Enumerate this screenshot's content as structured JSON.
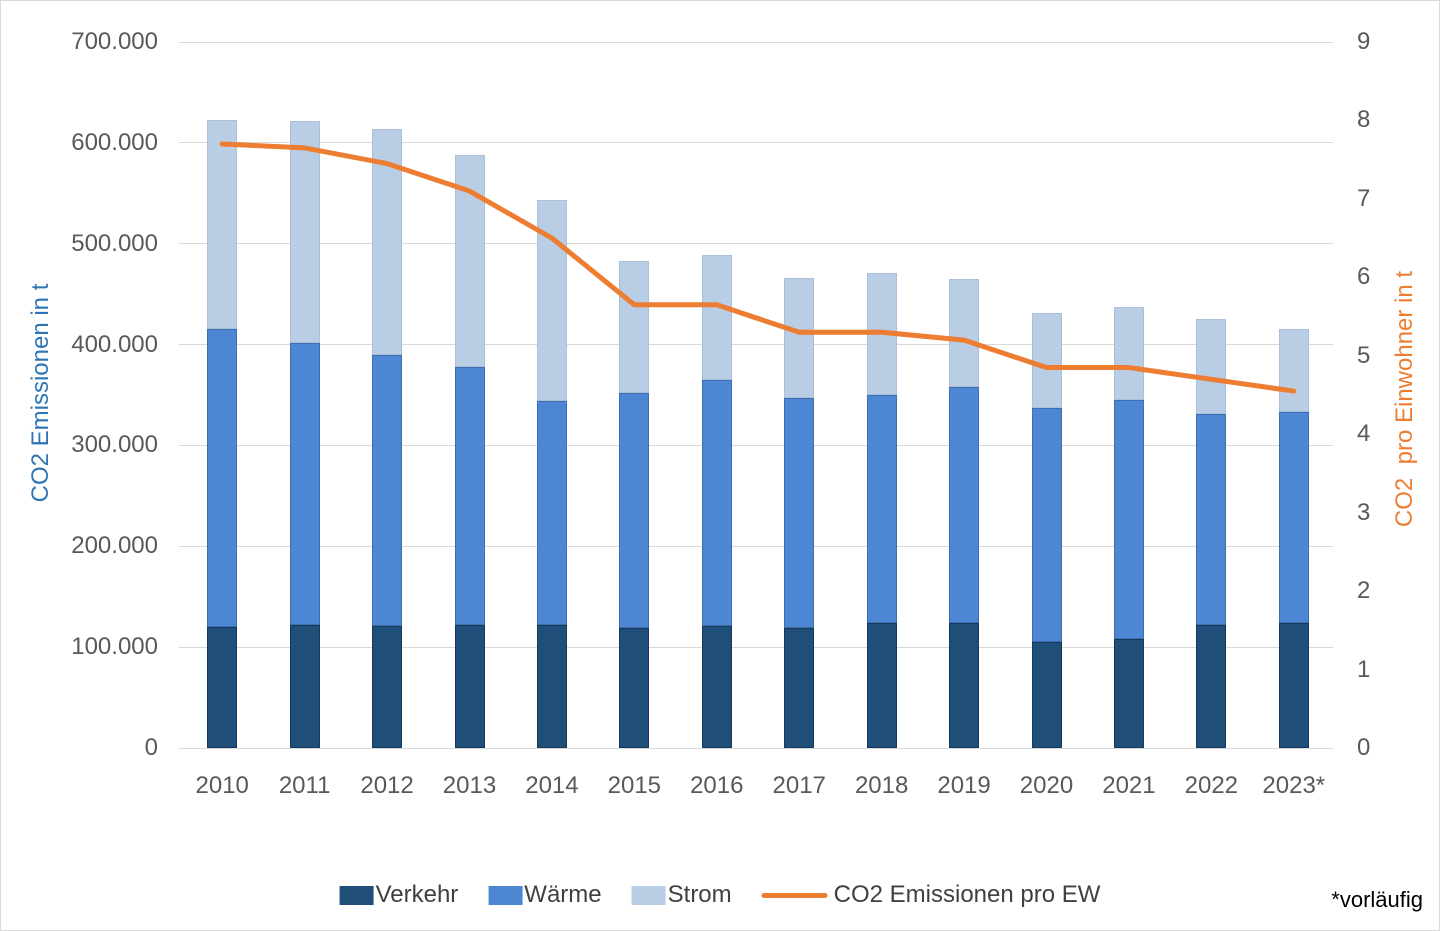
{
  "chart_data": {
    "type": "bar",
    "subtype": "stacked-bars-with-line",
    "categories": [
      "2010",
      "2011",
      "2012",
      "2013",
      "2014",
      "2015",
      "2016",
      "2017",
      "2018",
      "2019",
      "2020",
      "2021",
      "2022",
      "2023*"
    ],
    "series": [
      {
        "name": "Verkehr",
        "type": "bar",
        "axis": "left",
        "color": "#1F4E79",
        "values": [
          120000,
          122000,
          121000,
          122000,
          122000,
          119000,
          121000,
          119000,
          124000,
          124000,
          105000,
          108000,
          122000,
          124000
        ]
      },
      {
        "name": "Wärme",
        "type": "bar",
        "axis": "left",
        "color": "#4D86D2",
        "values": [
          295000,
          280000,
          269000,
          256000,
          222000,
          233000,
          244000,
          228000,
          226000,
          234000,
          232000,
          237000,
          209000,
          209000
        ]
      },
      {
        "name": "Strom",
        "type": "bar",
        "axis": "left",
        "color": "#B9CDE5",
        "values": [
          208000,
          220000,
          224000,
          210000,
          199000,
          131000,
          124000,
          119000,
          121000,
          107000,
          94000,
          92000,
          94000,
          82000
        ]
      },
      {
        "name": "CO2 Emissionen pro EW",
        "type": "line",
        "axis": "right",
        "color": "#ED7D31",
        "values": [
          7.7,
          7.65,
          7.45,
          7.1,
          6.5,
          5.65,
          5.65,
          5.3,
          5.3,
          5.2,
          4.85,
          4.85,
          4.7,
          4.55
        ]
      }
    ],
    "stacked_totals": [
      623000,
      622000,
      614000,
      588000,
      543000,
      483000,
      489000,
      466000,
      471000,
      465000,
      431000,
      437000,
      425000,
      415000
    ],
    "left_axis": {
      "label": "CO2 Emissionen in t",
      "color": "#2E75B6",
      "min": 0,
      "max": 700000,
      "tick_step": 100000,
      "tick_labels": [
        "0",
        "100.000",
        "200.000",
        "300.000",
        "400.000",
        "500.000",
        "600.000",
        "700.000"
      ]
    },
    "right_axis": {
      "label": "CO2  pro Einwohner in t",
      "color": "#ED7D31",
      "min": 0,
      "max": 9,
      "tick_step": 1,
      "tick_labels": [
        "0",
        "1",
        "2",
        "3",
        "4",
        "5",
        "6",
        "7",
        "8",
        "9"
      ]
    },
    "grid": true,
    "legend_position": "bottom",
    "footnote": "*vorläufig"
  }
}
